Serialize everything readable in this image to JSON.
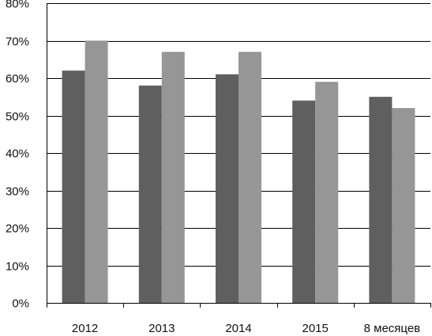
{
  "chart_data": {
    "type": "bar",
    "categories": [
      "2012",
      "2013",
      "2014",
      "2015",
      "8 месяцев"
    ],
    "series": [
      {
        "values": [
          62,
          58,
          61,
          54,
          55
        ],
        "color": "#5f5f5f"
      },
      {
        "values": [
          70,
          67,
          67,
          59,
          52
        ],
        "color": "#969696"
      }
    ],
    "ylim": [
      0,
      80
    ],
    "yticks": [
      0,
      10,
      20,
      30,
      40,
      50,
      60,
      70,
      80
    ],
    "ytick_format": "{v}%",
    "grid": true,
    "legend": "none",
    "title": "",
    "xlabel": "",
    "ylabel": ""
  }
}
